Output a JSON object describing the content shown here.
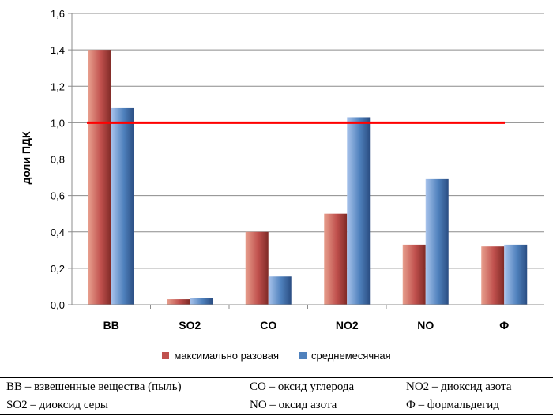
{
  "chart_data": {
    "type": "bar",
    "title": "",
    "xlabel": "",
    "ylabel": "доли ПДК",
    "ylim": [
      0,
      1.6
    ],
    "yticks": [
      "0,0",
      "0,2",
      "0,4",
      "0,6",
      "0,8",
      "1,0",
      "1,2",
      "1,4",
      "1,6"
    ],
    "categories": [
      "ВВ",
      "SO2",
      "CO",
      "NO2",
      "NO",
      "Ф"
    ],
    "series": [
      {
        "name": "максимально разовая",
        "values": [
          1.4,
          0.03,
          0.4,
          0.5,
          0.33,
          0.32
        ],
        "color": "#c0504d"
      },
      {
        "name": "среднемесячная",
        "values": [
          1.08,
          0.035,
          0.155,
          1.03,
          0.69,
          0.33
        ],
        "color": "#4f81bd"
      }
    ],
    "reference_line": {
      "value": 1.0,
      "color": "#ff0000"
    },
    "grid": "horizontal",
    "legend_position": "bottom"
  },
  "legend": {
    "items": [
      {
        "label": "максимально разовая",
        "color": "#c0504d"
      },
      {
        "label": "среднемесячная",
        "color": "#4f81bd"
      }
    ]
  },
  "abbreviations": {
    "rows": [
      [
        "ВВ – взвешенные вещества (пыль)",
        "СО – оксид углерода",
        "NO2 – диоксид азота"
      ],
      [
        "SO2 – диоксид серы",
        "NO – оксид азота",
        "Ф – формальдегид"
      ]
    ]
  }
}
